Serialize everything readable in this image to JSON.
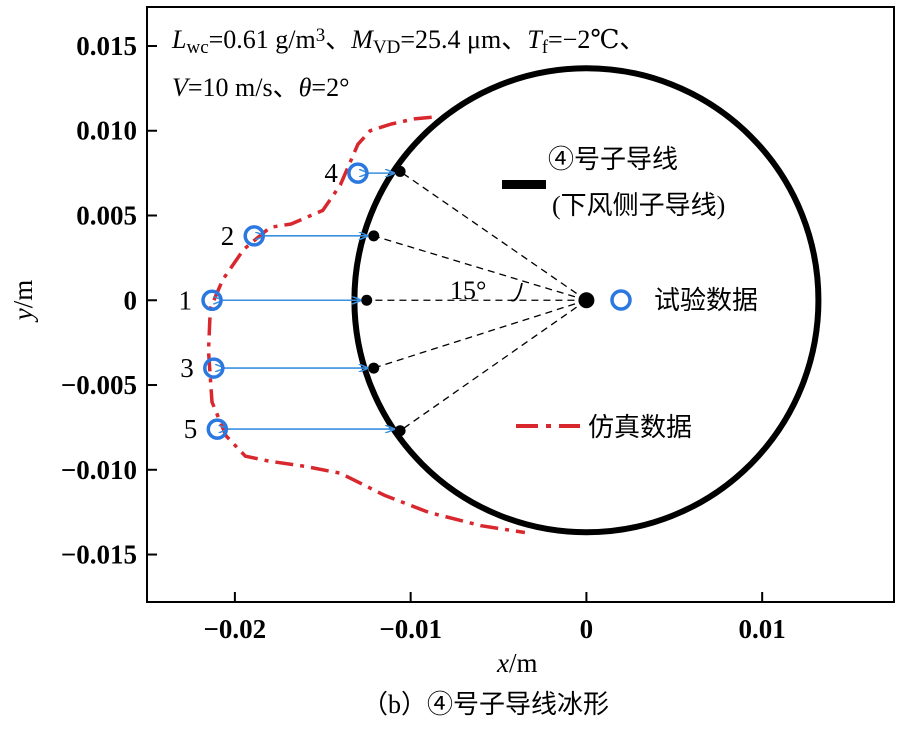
{
  "chart_data": {
    "type": "scatter",
    "xlabel_var": "x",
    "xlabel_unit": "/m",
    "ylabel_var": "y",
    "ylabel_unit": "/m",
    "xlim": [
      -0.025,
      0.0175
    ],
    "ylim": [
      -0.0178,
      0.0173
    ],
    "x_ticks": [
      -0.02,
      -0.01,
      0,
      0.01
    ],
    "x_tick_labels": [
      "−0.02",
      "−0.01",
      "0",
      "0.01"
    ],
    "y_ticks": [
      0.015,
      0.01,
      0.005,
      0,
      -0.005,
      -0.01,
      -0.015
    ],
    "y_tick_labels": [
      "0.015",
      "0.010",
      "0.005",
      "0",
      "−0.005",
      "−0.010",
      "−0.015"
    ],
    "grid": false,
    "conditions": {
      "line1_parts": [
        {
          "t": "L",
          "s": "i"
        },
        {
          "t": "wc",
          "s": "sub"
        },
        {
          "t": "=0.61 g/m"
        },
        {
          "t": "3",
          "s": "sup"
        },
        {
          "t": "、"
        },
        {
          "t": "M",
          "s": "i"
        },
        {
          "t": "VD",
          "s": "sub"
        },
        {
          "t": "=25.4 μm、"
        },
        {
          "t": "T",
          "s": "i"
        },
        {
          "t": "f",
          "s": "sub"
        },
        {
          "t": "=−2℃、"
        }
      ],
      "line2_parts": [
        {
          "t": "V",
          "s": "i"
        },
        {
          "t": "=10 m/s、"
        },
        {
          "t": "θ",
          "s": "i"
        },
        {
          "t": "=2°"
        }
      ]
    },
    "conductor": {
      "center": [
        0,
        0
      ],
      "radius": 0.0132
    },
    "wire_label_line1": "④号子导线",
    "wire_label_line2": "(下风侧子导线)",
    "angle_label": "15°",
    "experimental": {
      "name": "试验数据",
      "points": [
        {
          "id": "1",
          "x": -0.0213,
          "y": 0.0
        },
        {
          "id": "2",
          "x": -0.0189,
          "y": 0.0038
        },
        {
          "id": "3",
          "x": -0.0212,
          "y": -0.004
        },
        {
          "id": "4",
          "x": -0.013,
          "y": 0.0075
        },
        {
          "id": "5",
          "x": -0.021,
          "y": -0.0076
        }
      ]
    },
    "surface_points": [
      {
        "x": -0.0125,
        "y": 0.0
      },
      {
        "x": -0.0121,
        "y": 0.0038
      },
      {
        "x": -0.0121,
        "y": -0.004
      },
      {
        "x": -0.0106,
        "y": 0.0076
      },
      {
        "x": -0.0106,
        "y": -0.0077
      }
    ],
    "simulation": {
      "name": "仿真数据",
      "points": [
        [
          -0.0088,
          0.0108
        ],
        [
          -0.0098,
          0.0107
        ],
        [
          -0.0111,
          0.0104
        ],
        [
          -0.0123,
          0.01
        ],
        [
          -0.013,
          0.0092
        ],
        [
          -0.014,
          0.0068
        ],
        [
          -0.015,
          0.0053
        ],
        [
          -0.0168,
          0.0045
        ],
        [
          -0.018,
          0.0043
        ],
        [
          -0.0195,
          0.003
        ],
        [
          -0.0207,
          0.0012
        ],
        [
          -0.0214,
          -0.0005
        ],
        [
          -0.0215,
          -0.003
        ],
        [
          -0.0213,
          -0.006
        ],
        [
          -0.0205,
          -0.008
        ],
        [
          -0.0194,
          -0.0092
        ],
        [
          -0.018,
          -0.0095
        ],
        [
          -0.016,
          -0.0098
        ],
        [
          -0.014,
          -0.0102
        ],
        [
          -0.0115,
          -0.0115
        ],
        [
          -0.009,
          -0.0125
        ],
        [
          -0.006,
          -0.0133
        ],
        [
          -0.0035,
          -0.0137
        ]
      ]
    },
    "colors": {
      "experimental": "#2b78e0",
      "simulation": "#d9272e",
      "arrow": "#3a8fe0"
    }
  },
  "caption": "（b）④号子导线冰形"
}
